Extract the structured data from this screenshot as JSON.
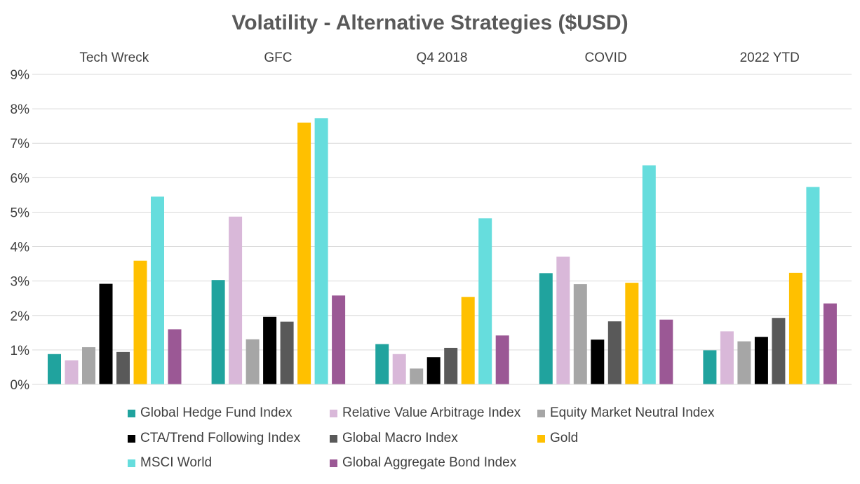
{
  "chart_data": {
    "type": "bar",
    "title": "Volatility - Alternative Strategies ($USD)",
    "categories": [
      "Tech Wreck",
      "GFC",
      "Q4 2018",
      "COVID",
      "2022 YTD"
    ],
    "ylim": [
      0,
      9
    ],
    "yticks": [
      "0%",
      "1%",
      "2%",
      "3%",
      "4%",
      "5%",
      "6%",
      "7%",
      "8%",
      "9%"
    ],
    "grid": true,
    "category_labels_position": "top",
    "legend_position": "bottom",
    "series": [
      {
        "name": "Global Hedge Fund Index",
        "color": "#20A39E",
        "values": [
          0.88,
          3.03,
          1.17,
          3.23,
          0.99
        ]
      },
      {
        "name": "Relative Value Arbitrage Index",
        "color": "#D9B8D9",
        "values": [
          0.7,
          4.87,
          0.88,
          3.71,
          1.54
        ]
      },
      {
        "name": "Equity Market Neutral Index",
        "color": "#A6A6A6",
        "values": [
          1.08,
          1.31,
          0.46,
          2.91,
          1.25
        ]
      },
      {
        "name": "CTA/Trend Following Index",
        "color": "#000000",
        "values": [
          2.92,
          1.96,
          0.79,
          1.3,
          1.38
        ]
      },
      {
        "name": "Global Macro Index",
        "color": "#595959",
        "values": [
          0.94,
          1.82,
          1.06,
          1.83,
          1.93
        ]
      },
      {
        "name": "Gold",
        "color": "#FFC000",
        "values": [
          3.59,
          7.6,
          2.54,
          2.95,
          3.24
        ]
      },
      {
        "name": "MSCI World",
        "color": "#66DDDD",
        "values": [
          5.45,
          7.73,
          4.82,
          6.36,
          5.73
        ]
      },
      {
        "name": "Global Aggregate Bond Index",
        "color": "#9B5895",
        "values": [
          1.6,
          2.58,
          1.42,
          1.88,
          2.35
        ]
      }
    ]
  }
}
